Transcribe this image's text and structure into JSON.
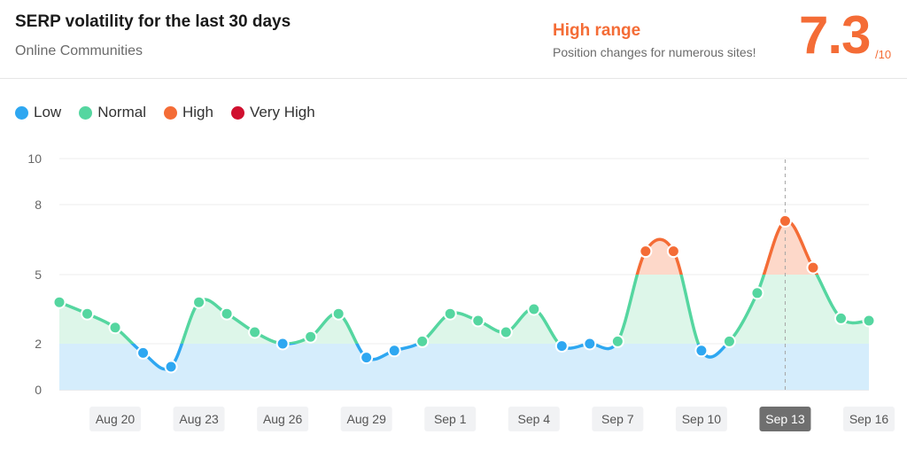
{
  "header": {
    "title": "SERP volatility for the last 30 days",
    "subtitle": "Online Communities",
    "range_label": "High range",
    "range_desc": "Position changes for numerous sites!",
    "score": "7.3",
    "score_denominator": "/10"
  },
  "legend": [
    {
      "label": "Low",
      "color": "#2ea7f1"
    },
    {
      "label": "Normal",
      "color": "#55d6a0"
    },
    {
      "label": "High",
      "color": "#f46c36"
    },
    {
      "label": "Very High",
      "color": "#d0102f"
    }
  ],
  "colors": {
    "low": "#2ea7f1",
    "normal": "#55d6a0",
    "high": "#f46c36",
    "low_fill": "#d5edfc",
    "normal_fill": "#ddf6e9",
    "high_fill": "#fdd8c9",
    "highlight_tick": "#6f6f6f"
  },
  "chart_data": {
    "type": "area",
    "y_ticks": [
      0,
      2,
      5,
      8,
      10
    ],
    "ylim": [
      0,
      10
    ],
    "x_tick_labels": [
      "Aug 20",
      "Aug 23",
      "Aug 26",
      "Aug 29",
      "Sep 1",
      "Sep 4",
      "Sep 7",
      "Sep 10",
      "Sep 13",
      "Sep 16"
    ],
    "highlighted_tick": "Sep 13",
    "x": [
      "Aug 18",
      "Aug 19",
      "Aug 20",
      "Aug 21",
      "Aug 22",
      "Aug 23",
      "Aug 24",
      "Aug 25",
      "Aug 26",
      "Aug 27",
      "Aug 28",
      "Aug 29",
      "Aug 30",
      "Aug 31",
      "Sep 1",
      "Sep 2",
      "Sep 3",
      "Sep 4",
      "Sep 5",
      "Sep 6",
      "Sep 7",
      "Sep 8",
      "Sep 9",
      "Sep 10",
      "Sep 11",
      "Sep 12",
      "Sep 13",
      "Sep 14",
      "Sep 15",
      "Sep 16"
    ],
    "values": [
      3.8,
      3.3,
      2.7,
      1.6,
      1.0,
      3.8,
      3.3,
      2.5,
      2.0,
      2.3,
      3.3,
      1.4,
      1.7,
      2.1,
      3.3,
      3.0,
      2.5,
      3.5,
      1.9,
      2.0,
      2.1,
      6.0,
      6.0,
      1.7,
      2.1,
      4.2,
      7.3,
      5.3,
      3.1,
      3.0
    ],
    "level_bands": [
      {
        "name": "Low",
        "from": 0,
        "to": 2
      },
      {
        "name": "Normal",
        "from": 2,
        "to": 5
      },
      {
        "name": "High",
        "from": 5,
        "to": 8
      },
      {
        "name": "Very High",
        "from": 8,
        "to": 10
      }
    ],
    "grid": true
  }
}
